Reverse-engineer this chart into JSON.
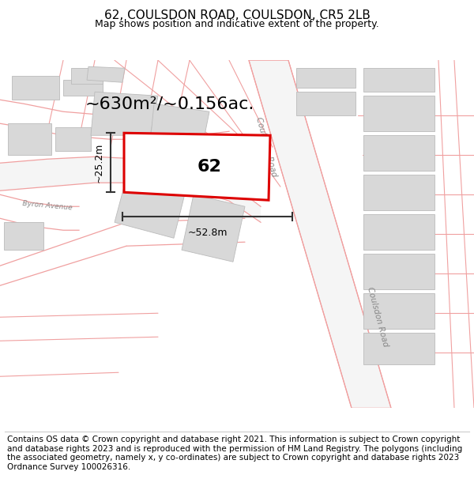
{
  "title": "62, COULSDON ROAD, COULSDON, CR5 2LB",
  "subtitle": "Map shows position and indicative extent of the property.",
  "footer": "Contains OS data © Crown copyright and database right 2021. This information is subject to Crown copyright and database rights 2023 and is reproduced with the permission of HM Land Registry. The polygons (including the associated geometry, namely x, y co-ordinates) are subject to Crown copyright and database rights 2023 Ordnance Survey 100026316.",
  "area_label": "~630m²/~0.156ac.",
  "property_number": "62",
  "width_label": "~52.8m",
  "height_label": "~25.2m",
  "property_color": "#dd0000",
  "road_stroke": "#f0a0a0",
  "building_fill": "#d8d8d8",
  "building_edge": "#bbbbbb",
  "dim_color": "#333333",
  "road_label_color": "#888888",
  "title_fontsize": 11,
  "subtitle_fontsize": 9,
  "footer_fontsize": 7.5,
  "area_fontsize": 16,
  "number_fontsize": 16,
  "dim_fontsize": 9
}
